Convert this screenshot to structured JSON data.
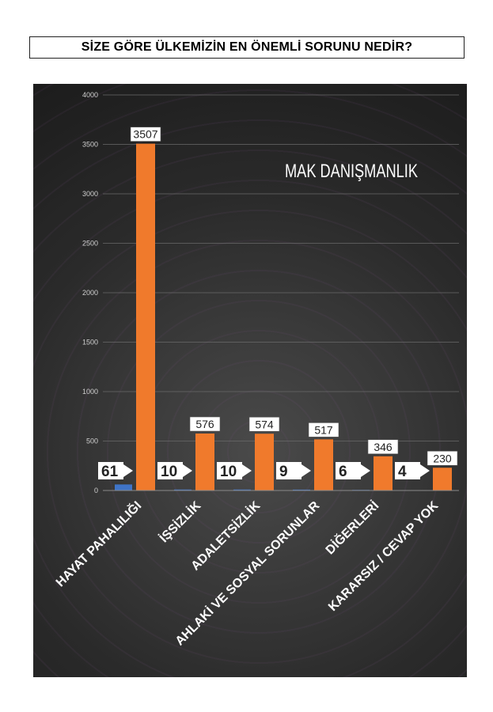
{
  "page": {
    "title": "SİZE GÖRE ÜLKEMİZİN EN ÖNEMLİ SORUNU NEDİR?"
  },
  "colors": {
    "bar_primary": "#f07a2c",
    "bar_secondary": "#3f74c8",
    "background": "#2e2e2e",
    "label_text": "#ffffff"
  },
  "chart_data": {
    "type": "bar",
    "watermark": "MAK DANIŞMANLIK",
    "categories": [
      "HAYAT PAHALILIĞI",
      "İŞSİZLİK",
      "ADALETSİZLİK",
      "AHLAKİ VE SOSYAL SORUNLAR",
      "DİĞERLERİ",
      "KARARSIZ / CEVAP YOK"
    ],
    "series": [
      {
        "values": [
          61,
          10,
          10,
          9,
          6,
          4
        ]
      },
      {
        "values": [
          3507,
          576,
          574,
          517,
          346,
          230
        ]
      }
    ],
    "ylim": [
      0,
      4000
    ],
    "yticks": [
      0,
      500,
      1000,
      1500,
      2000,
      2500,
      3000,
      3500,
      4000
    ],
    "grid": true,
    "legend": "none"
  }
}
